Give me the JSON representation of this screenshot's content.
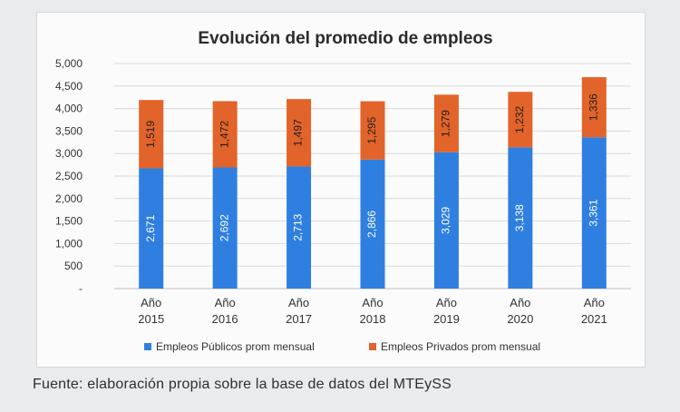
{
  "chart_data": {
    "type": "bar",
    "stacked": true,
    "title": "Evolución del promedio de empleos",
    "categories": [
      [
        "Año",
        "2015"
      ],
      [
        "Año",
        "2016"
      ],
      [
        "Año",
        "2017"
      ],
      [
        "Año",
        "2018"
      ],
      [
        "Año",
        "2019"
      ],
      [
        "Año",
        "2020"
      ],
      [
        "Año",
        "2021"
      ]
    ],
    "series": [
      {
        "name": "Empleos Públicos prom mensual",
        "color": "#2f7fe0",
        "values": [
          2671,
          2692,
          2713,
          2866,
          3029,
          3138,
          3361
        ],
        "labels": [
          "2,671",
          "2,692",
          "2,713",
          "2,866",
          "3,029",
          "3,138",
          "3,361"
        ]
      },
      {
        "name": "Empleos Privados prom mensual",
        "color": "#e2642a",
        "values": [
          1519,
          1472,
          1497,
          1295,
          1279,
          1232,
          1336
        ],
        "labels": [
          "1,519",
          "1,472",
          "1,497",
          "1,295",
          "1,279",
          "1,232",
          "1,336"
        ]
      }
    ],
    "ylim": [
      0,
      5000
    ],
    "yticks": [
      {
        "value": 0,
        "label": "-"
      },
      {
        "value": 500,
        "label": "500"
      },
      {
        "value": 1000,
        "label": "1,000"
      },
      {
        "value": 1500,
        "label": "1,500"
      },
      {
        "value": 2000,
        "label": "2,000"
      },
      {
        "value": 2500,
        "label": "2,500"
      },
      {
        "value": 3000,
        "label": "3,000"
      },
      {
        "value": 3500,
        "label": "3,500"
      },
      {
        "value": 4000,
        "label": "4,000"
      },
      {
        "value": 4500,
        "label": "4,500"
      },
      {
        "value": 5000,
        "label": "5,000"
      }
    ],
    "grid": true,
    "legend_position": "bottom"
  },
  "source_note": "Fuente: elaboración propia sobre la base de datos del MTEySS"
}
